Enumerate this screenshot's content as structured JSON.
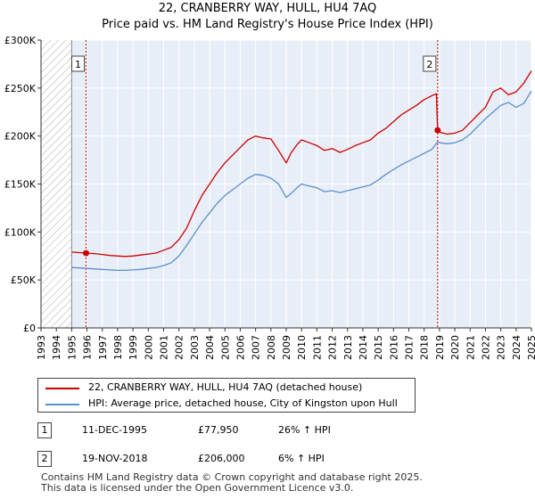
{
  "title_line1": "22, CRANBERRY WAY, HULL, HU4 7AQ",
  "title_line2": "Price paid vs. HM Land Registry's House Price Index (HPI)",
  "chart_data": {
    "type": "line",
    "xlim": [
      1993,
      2025
    ],
    "ylim": [
      0,
      300000
    ],
    "yticks": [
      0,
      50000,
      100000,
      150000,
      200000,
      250000,
      300000
    ],
    "ytick_labels": [
      "£0",
      "£50K",
      "£100K",
      "£150K",
      "£200K",
      "£250K",
      "£300K"
    ],
    "xticks": [
      1993,
      1994,
      1995,
      1996,
      1997,
      1998,
      1999,
      2000,
      2001,
      2002,
      2003,
      2004,
      2005,
      2006,
      2007,
      2008,
      2009,
      2010,
      2011,
      2012,
      2013,
      2014,
      2015,
      2016,
      2017,
      2018,
      2019,
      2020,
      2021,
      2022,
      2023,
      2024,
      2025
    ],
    "xtick_labels": [
      "1993",
      "1994",
      "1995",
      "1996",
      "1997",
      "1998",
      "1999",
      "2000",
      "2001",
      "2002",
      "2003",
      "2004",
      "2005",
      "2006",
      "2007",
      "2008",
      "2009",
      "2010",
      "2011",
      "2012",
      "2013",
      "2014",
      "2015",
      "2016",
      "2017",
      "2018",
      "2019",
      "2020",
      "2021",
      "2022",
      "2023",
      "2024",
      "2025"
    ],
    "hatch_regions": [
      [
        1993,
        1995.0
      ]
    ],
    "series": [
      {
        "name": "22, CRANBERRY WAY, HULL, HU4 7AQ (detached house)",
        "color": "#cc0000",
        "x": [
          1995.0,
          1995.5,
          1995.94,
          1996.5,
          1997,
          1997.5,
          1998,
          1998.5,
          1999,
          1999.5,
          2000,
          2000.5,
          2001,
          2001.5,
          2002,
          2002.5,
          2003,
          2003.5,
          2004,
          2004.5,
          2005,
          2005.5,
          2006,
          2006.5,
          2007,
          2007.5,
          2008,
          2008.5,
          2009,
          2009.3,
          2009.7,
          2010,
          2010.5,
          2011,
          2011.5,
          2012,
          2012.5,
          2013,
          2013.5,
          2014,
          2014.5,
          2015,
          2015.5,
          2016,
          2016.5,
          2017,
          2017.5,
          2018,
          2018.5,
          2018.8,
          2018.88,
          2019,
          2019.5,
          2020,
          2020.5,
          2021,
          2021.5,
          2022,
          2022.5,
          2023,
          2023.5,
          2024,
          2024.5,
          2025
        ],
        "y": [
          79000,
          78500,
          77950,
          77500,
          76500,
          75500,
          75000,
          74500,
          75000,
          76000,
          77000,
          78000,
          81000,
          84000,
          92000,
          104000,
          122000,
          138000,
          150000,
          162000,
          172000,
          180000,
          188000,
          196000,
          200000,
          198000,
          197000,
          185000,
          172000,
          182000,
          191000,
          196000,
          193000,
          190000,
          185000,
          187000,
          183000,
          186000,
          190000,
          193000,
          196000,
          203000,
          208000,
          215000,
          222000,
          227000,
          232000,
          238000,
          242000,
          244000,
          206000,
          204000,
          202000,
          203000,
          206000,
          214000,
          222000,
          230000,
          246000,
          250000,
          243000,
          246000,
          255000,
          268000
        ]
      },
      {
        "name": "HPI: Average price, detached house, City of Kingston upon Hull",
        "color": "#5b8fd0",
        "x": [
          1995.0,
          1995.5,
          1996,
          1996.5,
          1997,
          1997.5,
          1998,
          1998.5,
          1999,
          1999.5,
          2000,
          2000.5,
          2001,
          2001.5,
          2002,
          2002.5,
          2003,
          2003.5,
          2004,
          2004.5,
          2005,
          2005.5,
          2006,
          2006.5,
          2007,
          2007.5,
          2008,
          2008.5,
          2009,
          2009.3,
          2009.7,
          2010,
          2010.5,
          2011,
          2011.5,
          2012,
          2012.5,
          2013,
          2013.5,
          2014,
          2014.5,
          2015,
          2015.5,
          2016,
          2016.5,
          2017,
          2017.5,
          2018,
          2018.5,
          2018.88,
          2019,
          2019.5,
          2020,
          2020.5,
          2021,
          2021.5,
          2022,
          2022.5,
          2023,
          2023.5,
          2024,
          2024.5,
          2025
        ],
        "y": [
          63000,
          62500,
          62000,
          61500,
          61000,
          60500,
          60000,
          60000,
          60500,
          61000,
          62000,
          63000,
          65000,
          68000,
          75000,
          86000,
          98000,
          110000,
          120000,
          130000,
          138000,
          144000,
          150000,
          156000,
          160000,
          159000,
          156000,
          150000,
          136000,
          140000,
          146000,
          150000,
          148000,
          146000,
          142000,
          143000,
          141000,
          143000,
          145000,
          147000,
          149000,
          154000,
          160000,
          165000,
          170000,
          174000,
          178000,
          182000,
          186000,
          194000,
          193000,
          192000,
          193000,
          196000,
          202000,
          210000,
          218000,
          225000,
          232000,
          235000,
          230000,
          234000,
          247000
        ]
      }
    ],
    "sales": [
      {
        "label": "1",
        "x": 1995.94,
        "y": 77950
      },
      {
        "label": "2",
        "x": 2018.88,
        "y": 206000
      }
    ]
  },
  "legend": [
    {
      "label": "22, CRANBERRY WAY, HULL, HU4 7AQ (detached house)",
      "color": "#cc0000"
    },
    {
      "label": "HPI: Average price, detached house, City of Kingston upon Hull",
      "color": "#5b8fd0"
    }
  ],
  "sales_table": [
    {
      "num": "1",
      "date": "11-DEC-1995",
      "price": "£77,950",
      "hpi": "26% ↑ HPI"
    },
    {
      "num": "2",
      "date": "19-NOV-2018",
      "price": "£206,000",
      "hpi": "6% ↑ HPI"
    }
  ],
  "footer_line1": "Contains HM Land Registry data © Crown copyright and database right 2025.",
  "footer_line2": "This data is licensed under the Open Government Licence v3.0."
}
